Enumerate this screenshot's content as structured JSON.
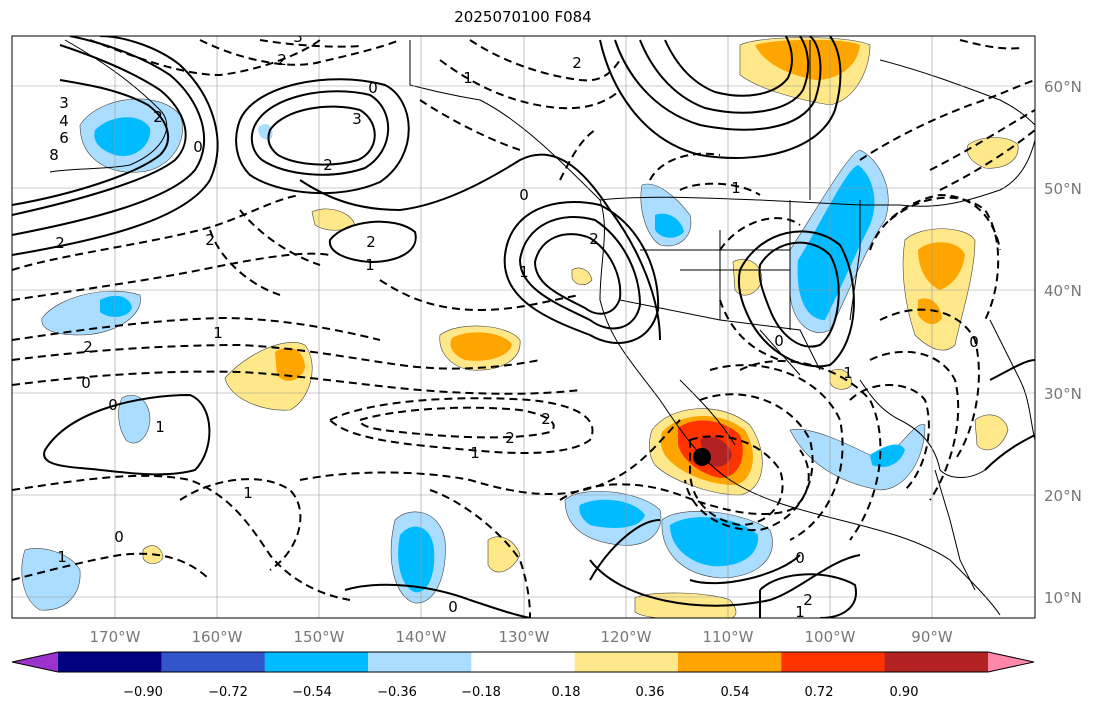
{
  "title": "2025070100 F084",
  "lat_labels": [
    "60°N",
    "50°N",
    "40°N",
    "30°N",
    "20°N",
    "10°N"
  ],
  "lon_labels": [
    "170°W",
    "160°W",
    "150°W",
    "140°W",
    "130°W",
    "120°W",
    "110°W",
    "100°W",
    "90°W"
  ],
  "colorbar": {
    "ticks": [
      "−0.90",
      "−0.72",
      "−0.54",
      "−0.36",
      "−0.18",
      "0.18",
      "0.36",
      "0.54",
      "0.72",
      "0.90"
    ],
    "colors": [
      "#9933cc",
      "#000080",
      "#3355cc",
      "#00bbff",
      "#aaddff",
      "#ffffff",
      "#ffe88a",
      "#ffa500",
      "#ff3300",
      "#b22222",
      "#ff88aa"
    ]
  },
  "contour_labels": [
    "3",
    "2",
    "0",
    "1",
    "3",
    "2",
    "2",
    "3",
    "4",
    "6",
    "8",
    "2",
    "2",
    "0",
    "2",
    "1",
    "2",
    "0",
    "1",
    "2",
    "1",
    "0",
    "1",
    "0",
    "1",
    "1",
    "2",
    "1",
    "2",
    "0",
    "2",
    "0",
    "1",
    "0",
    "2",
    "0",
    "0",
    "1",
    "1"
  ],
  "marker": {
    "lon": -111,
    "lat": 23.8
  }
}
